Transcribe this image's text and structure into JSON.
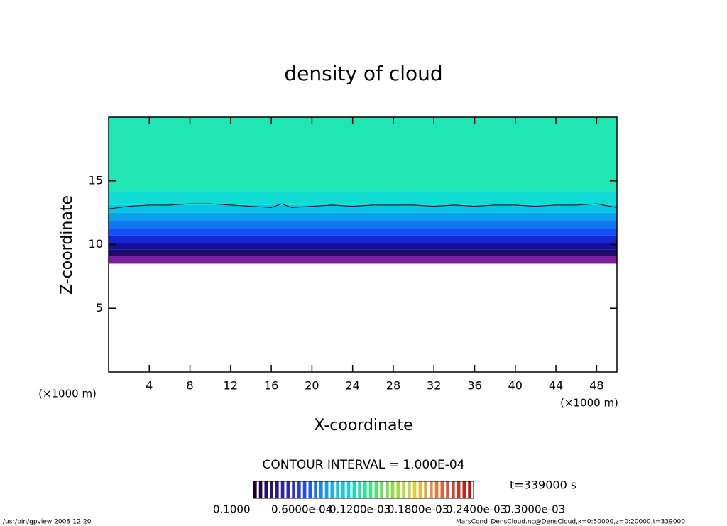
{
  "chart_data": {
    "type": "contour",
    "title": "density of cloud",
    "x_label": "X-coordinate",
    "y_label": "Z-coordinate",
    "x_unit": "(×1000 m)",
    "x_unit_right": "(×1000 m)",
    "xlim": [
      0,
      50
    ],
    "ylim": [
      0,
      20
    ],
    "xticks": [
      4,
      8,
      12,
      16,
      20,
      24,
      28,
      32,
      36,
      40,
      44,
      48
    ],
    "yticks": [
      5,
      10,
      15
    ],
    "bands": [
      {
        "z0": 8.5,
        "z1": 9.1,
        "color": "#7a1d9c"
      },
      {
        "z0": 9.1,
        "z1": 9.6,
        "color": "#1c0b6a"
      },
      {
        "z0": 9.6,
        "z1": 10.1,
        "color": "#160d9a"
      },
      {
        "z0": 10.1,
        "z1": 10.7,
        "color": "#1426d4"
      },
      {
        "z0": 10.7,
        "z1": 11.3,
        "color": "#1150f4"
      },
      {
        "z0": 11.3,
        "z1": 11.9,
        "color": "#0e78f2"
      },
      {
        "z0": 11.9,
        "z1": 12.5,
        "color": "#0aa2ea"
      },
      {
        "z0": 12.5,
        "z1": 13.1,
        "color": "#06c6e6"
      },
      {
        "z0": 13.1,
        "z1": 14.2,
        "color": "#10dcd4"
      },
      {
        "z0": 14.2,
        "z1": 20,
        "color": "#20e6b4"
      }
    ],
    "contour_line": {
      "x": [
        0,
        2,
        4,
        6,
        8,
        10,
        12,
        14,
        16,
        17,
        18,
        20,
        22,
        24,
        26,
        28,
        30,
        32,
        34,
        36,
        38,
        40,
        42,
        44,
        46,
        48,
        50
      ],
      "y": [
        12.8,
        13.0,
        13.1,
        13.1,
        13.2,
        13.2,
        13.1,
        13.0,
        12.9,
        13.2,
        12.9,
        13.0,
        13.1,
        13.0,
        13.1,
        13.1,
        13.1,
        13.0,
        13.1,
        13.0,
        13.1,
        13.1,
        13.0,
        13.1,
        13.1,
        13.2,
        12.9
      ]
    },
    "contour_interval": "CONTOUR INTERVAL = 1.000E-04",
    "time_label": "t=339000 s",
    "colorbar_colors": [
      "#1a0030",
      "#3020a0",
      "#2050ff",
      "#10c0f0",
      "#20e8a0",
      "#80e040",
      "#e0d040",
      "#e06040",
      "#c01010"
    ],
    "colorbar_labels": [
      "0.1000",
      "0.6000e-04",
      "0.1200e-03",
      "0.1800e-03",
      "0.2400e-03",
      "0.3000e-03"
    ],
    "footer_left": "/usr/bin/gpview  2008-12-20",
    "footer_right": "MarsCond_DensCloud.nc@DensCloud,x=0:50000,z=0:20000,t=339000"
  }
}
